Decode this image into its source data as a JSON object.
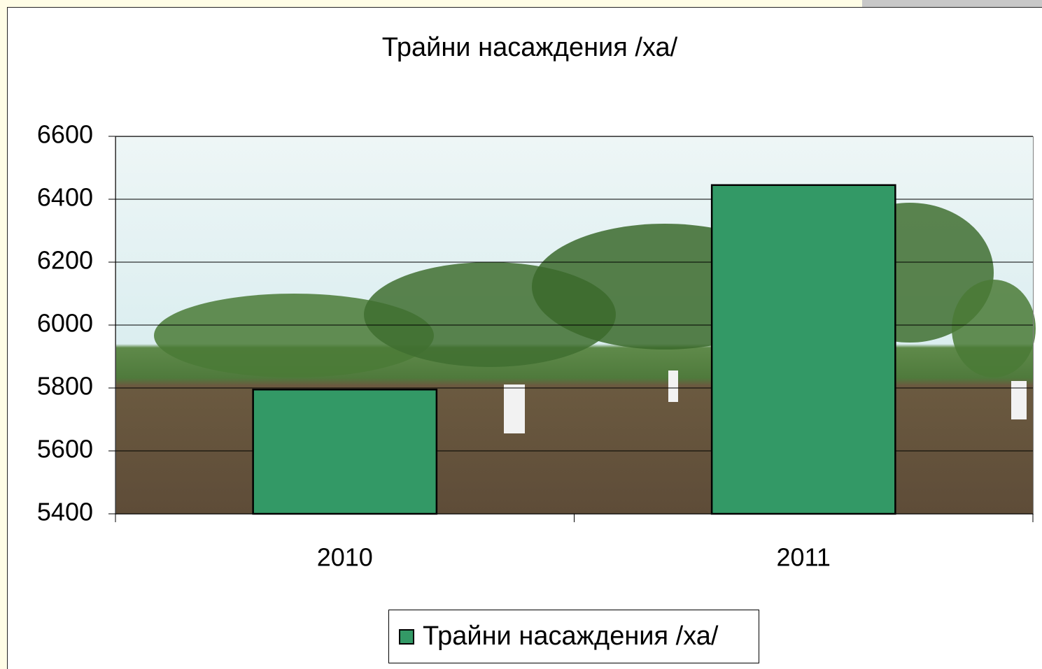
{
  "chart_data": {
    "type": "bar",
    "title": "Трайни насаждения /ха/",
    "categories": [
      "2010",
      "2011"
    ],
    "series": [
      {
        "name": "Трайни насаждения /ха/",
        "color": "#339966",
        "values": [
          5795,
          6445
        ]
      }
    ],
    "ylim": [
      5400,
      6600
    ],
    "yticks": [
      5400,
      5600,
      5800,
      6000,
      6200,
      6400,
      6600
    ],
    "grid": true,
    "legend": "bottom"
  }
}
